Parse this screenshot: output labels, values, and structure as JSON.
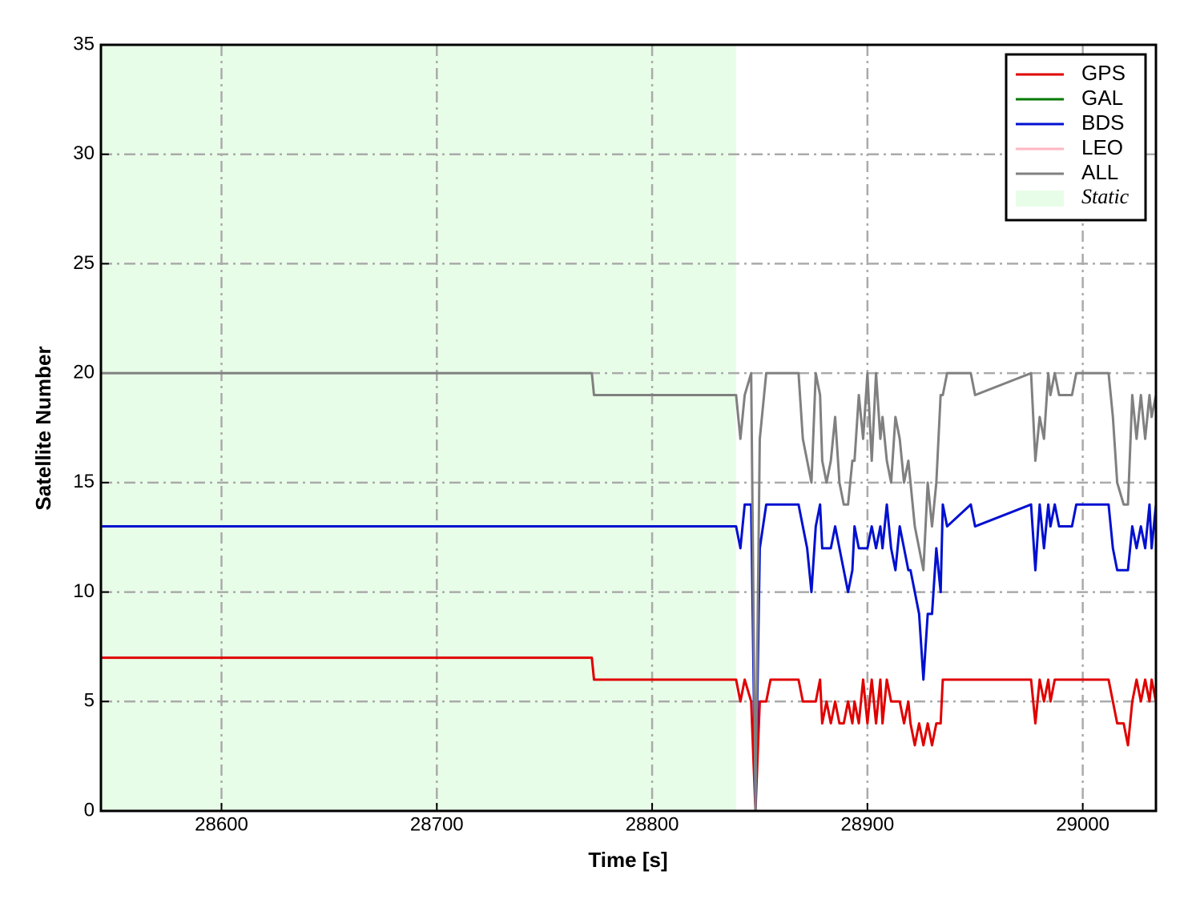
{
  "chart_data": {
    "type": "line",
    "x_label": "Time [s]",
    "y_label": "Satellite Number",
    "x": [
      28544,
      28772,
      28773,
      28839,
      28841,
      28843,
      28846,
      28848,
      28850,
      28853,
      28855,
      28868,
      28870,
      28872,
      28874,
      28876,
      28878,
      28879,
      28881,
      28883,
      28885,
      28887,
      28889,
      28891,
      28893,
      28894,
      28896,
      28898,
      28900,
      28902,
      28904,
      28906,
      28907,
      28909,
      28911,
      28913,
      28915,
      28917,
      28919,
      28920,
      28922,
      28924,
      28926,
      28928,
      28930,
      28932,
      28934,
      28935,
      28937,
      28948,
      28950,
      28976,
      28978,
      28980,
      28982,
      28984,
      28985,
      28987,
      28989,
      28995,
      28997,
      29012,
      29014,
      29016,
      29019,
      29021,
      29023,
      29025,
      29027,
      29029,
      29031,
      29032,
      29034
    ],
    "series": [
      {
        "name": "GPS",
        "color": "#e00000",
        "values": [
          7,
          7,
          6,
          6,
          5,
          6,
          5,
          0,
          5,
          5,
          6,
          6,
          5,
          5,
          5,
          5,
          6,
          4,
          5,
          4,
          5,
          4,
          4,
          5,
          4,
          5,
          4,
          6,
          4,
          6,
          4,
          6,
          4,
          6,
          5,
          5,
          5,
          4,
          5,
          4,
          3,
          4,
          3,
          4,
          3,
          4,
          4,
          6,
          6,
          6,
          6,
          6,
          4,
          6,
          5,
          6,
          5,
          6,
          6,
          6,
          6,
          6,
          5,
          4,
          4,
          3,
          5,
          6,
          5,
          6,
          5,
          6,
          5
        ]
      },
      {
        "name": "GAL",
        "color": "#007a00",
        "values": [
          0,
          0,
          0,
          0,
          0,
          0,
          0,
          0,
          0,
          0,
          0,
          0,
          0,
          0,
          0,
          0,
          0,
          0,
          0,
          0,
          0,
          0,
          0,
          0,
          0,
          0,
          0,
          0,
          0,
          0,
          0,
          0,
          0,
          0,
          0,
          0,
          0,
          0,
          0,
          0,
          0,
          0,
          0,
          0,
          0,
          0,
          0,
          0,
          0,
          0,
          0,
          0,
          0,
          0,
          0,
          0,
          0,
          0,
          0,
          0,
          0,
          0,
          0,
          0,
          0,
          0,
          0,
          0,
          0,
          0,
          0,
          0,
          0
        ]
      },
      {
        "name": "BDS",
        "color": "#0010d0",
        "values": [
          13,
          13,
          13,
          13,
          12,
          14,
          14,
          0,
          12,
          14,
          14,
          14,
          13,
          12,
          10,
          13,
          14,
          12,
          12,
          12,
          13,
          12,
          11,
          10,
          11,
          13,
          12,
          12,
          12,
          13,
          12,
          13,
          12,
          14,
          12,
          11,
          13,
          12,
          11,
          11,
          10,
          9,
          6,
          9,
          9,
          12,
          10,
          14,
          13,
          14,
          13,
          14,
          11,
          14,
          12,
          14,
          13,
          14,
          13,
          13,
          14,
          14,
          12,
          11,
          11,
          11,
          13,
          12,
          13,
          12,
          14,
          12,
          14
        ]
      },
      {
        "name": "LEO",
        "color": "#ffb6c1",
        "values": [
          0,
          0,
          0,
          0,
          0,
          0,
          0,
          0,
          0,
          0,
          0,
          0,
          0,
          0,
          0,
          0,
          0,
          0,
          0,
          0,
          0,
          0,
          0,
          0,
          0,
          0,
          0,
          0,
          0,
          0,
          0,
          0,
          0,
          0,
          0,
          0,
          0,
          0,
          0,
          0,
          0,
          0,
          0,
          0,
          0,
          0,
          0,
          0,
          0,
          0,
          0,
          0,
          0,
          0,
          0,
          0,
          0,
          0,
          0,
          0,
          0,
          0,
          0,
          0,
          0,
          0,
          0,
          0,
          0,
          0,
          0,
          0,
          0
        ]
      },
      {
        "name": "ALL",
        "color": "#808080",
        "values": [
          20,
          20,
          19,
          19,
          17,
          19,
          20,
          0,
          17,
          20,
          20,
          20,
          17,
          16,
          15,
          20,
          19,
          16,
          15,
          16,
          18,
          15,
          14,
          14,
          16,
          16,
          19,
          17,
          20,
          16,
          20,
          17,
          18,
          16,
          15,
          18,
          17,
          15,
          16,
          15,
          13,
          12,
          11,
          15,
          13,
          15,
          19,
          19,
          20,
          20,
          19,
          20,
          16,
          18,
          17,
          20,
          19,
          20,
          19,
          19,
          20,
          20,
          18,
          15,
          14,
          14,
          19,
          17,
          19,
          17,
          19,
          18,
          19
        ]
      }
    ],
    "static_label": "Static",
    "static_span": [
      28544,
      28839
    ],
    "static_color": "#e8fde8",
    "xlim": [
      28544,
      29034
    ],
    "ylim": [
      0,
      35
    ],
    "xticks": [
      28600,
      28700,
      28800,
      28900,
      29000
    ],
    "yticks": [
      0,
      5,
      10,
      15,
      20,
      25,
      30,
      35
    ],
    "grid": true,
    "legend": "upper right"
  }
}
